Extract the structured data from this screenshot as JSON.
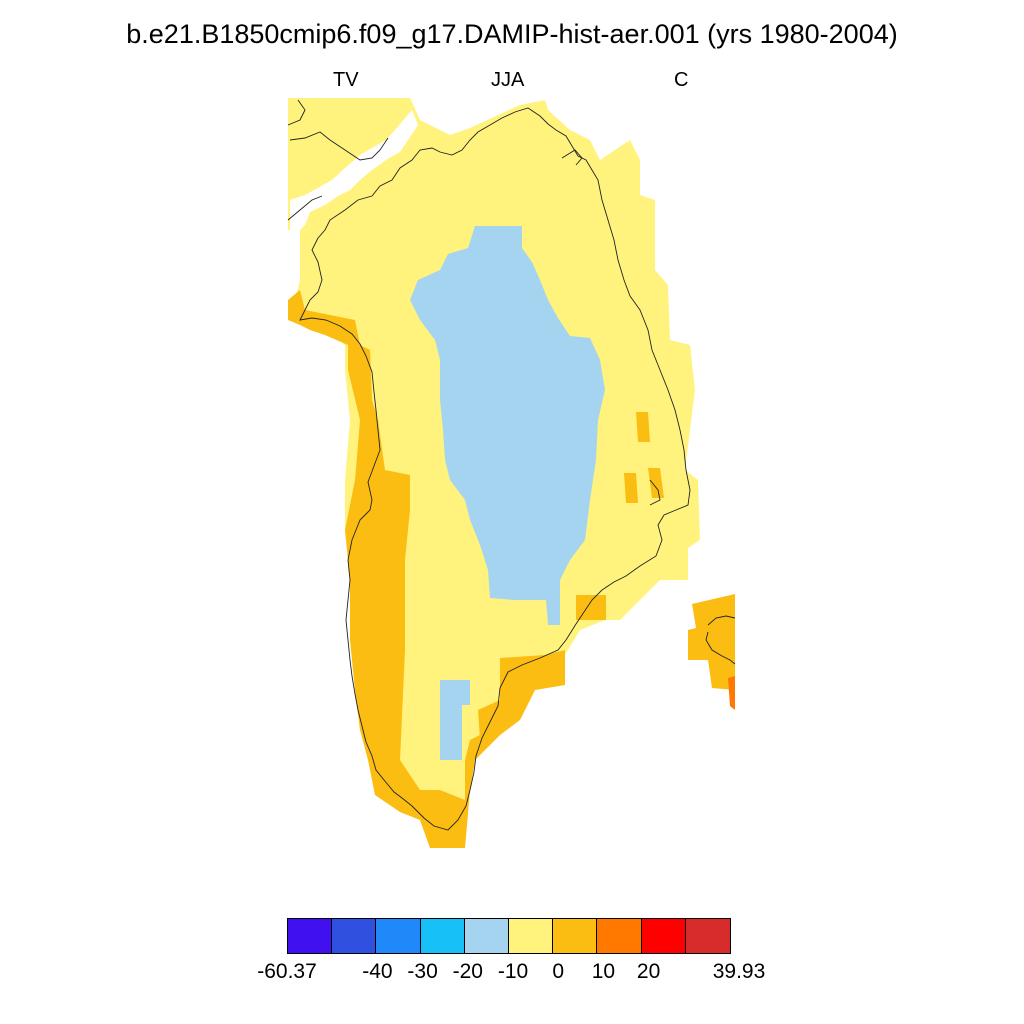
{
  "title": "b.e21.B1850cmip6.f09_g17.DAMIP-hist-aer.001 (yrs 1980-2004)",
  "subtitles": {
    "left": "TV",
    "center": "JJA",
    "right": "C"
  },
  "colorbar": {
    "colors": [
      "#4010f0",
      "#3050e0",
      "#2088f8",
      "#18c0f8",
      "#a4d4f0",
      "#fff37e",
      "#fbbd12",
      "#ff7800",
      "#ff0000",
      "#d62c2c"
    ],
    "tick_labels": [
      "-60.37",
      "-40",
      "-30",
      "-20",
      "-10",
      "0",
      "10",
      "20",
      "39.93"
    ]
  },
  "legend_colors": {
    "ice_interior": "#a4d4f0",
    "main": "#fff37e",
    "coastal_warm": "#fbbd12",
    "hot_spot": "#ff7800"
  }
}
